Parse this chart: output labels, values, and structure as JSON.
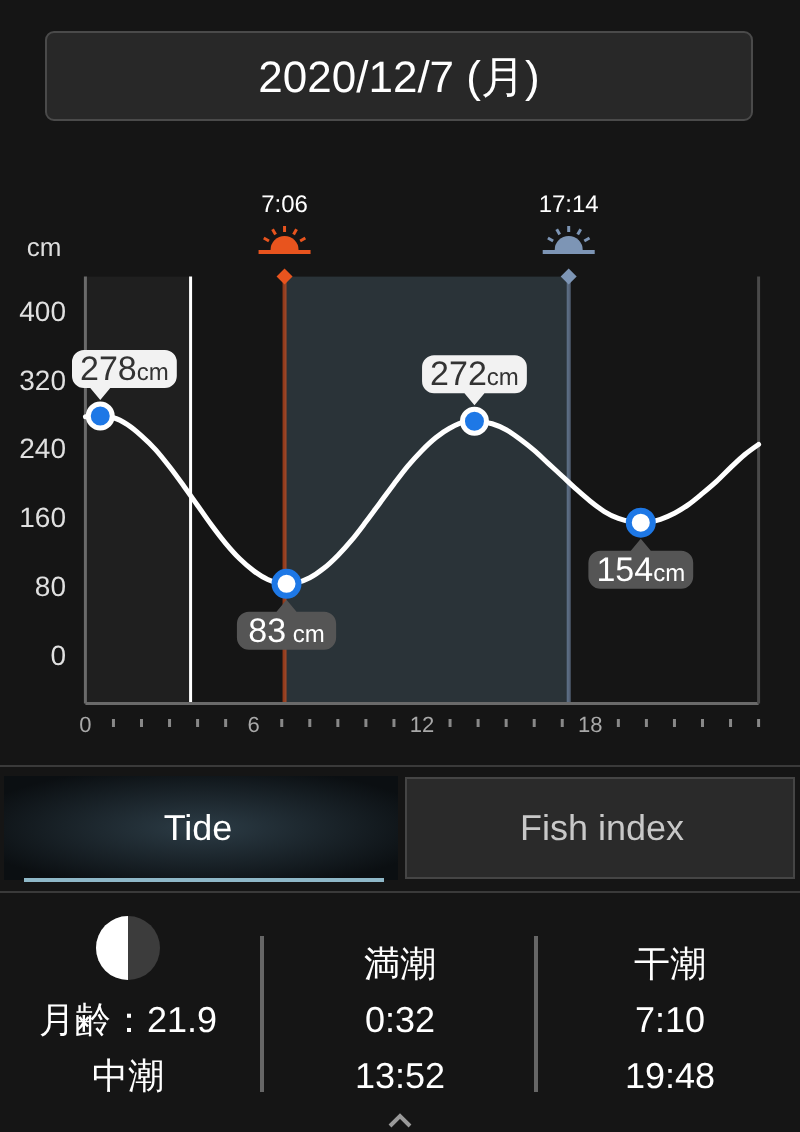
{
  "chart_data": {
    "type": "line",
    "title": "2020/12/7 (月)",
    "ylabel": "cm",
    "xlim": [
      0,
      24
    ],
    "xticks": [
      0,
      {
        "value": 1,
        "label": null
      },
      {
        "value": 2,
        "label": null
      },
      {
        "value": 3,
        "label": null
      },
      {
        "value": 4,
        "label": null
      },
      {
        "value": 5,
        "label": null
      },
      6,
      {
        "value": 7,
        "label": null
      },
      {
        "value": 8,
        "label": null
      },
      {
        "value": 9,
        "label": null
      },
      {
        "value": 10,
        "label": null
      },
      {
        "value": 11,
        "label": null
      },
      12,
      {
        "value": 13,
        "label": null
      },
      {
        "value": 14,
        "label": null
      },
      {
        "value": 15,
        "label": null
      },
      {
        "value": 16,
        "label": null
      },
      {
        "value": 17,
        "label": null
      },
      18,
      {
        "value": 19,
        "label": null
      },
      {
        "value": 20,
        "label": null
      },
      {
        "value": 21,
        "label": null
      },
      {
        "value": 22,
        "label": null
      },
      {
        "value": 23,
        "label": null
      },
      {
        "value": 24,
        "label": null
      }
    ],
    "ylim": [
      -56,
      440
    ],
    "yticks": [
      0,
      80,
      160,
      240,
      320,
      400
    ],
    "grid": false,
    "series": [
      {
        "color": "#ffffff",
        "x": [
          0,
          0.53,
          1,
          1.5,
          2,
          2.5,
          3,
          3.5,
          4,
          4.5,
          5,
          5.5,
          6,
          6.5,
          7.17,
          7.5,
          8,
          8.5,
          9,
          9.5,
          10,
          10.5,
          11,
          11.5,
          12,
          12.5,
          13,
          13.5,
          13.87,
          14.5,
          15,
          15.5,
          16,
          16.5,
          17,
          17.5,
          18,
          18.5,
          19,
          19.5,
          19.8,
          20.5,
          21,
          21.5,
          22,
          22.5,
          23,
          23.5,
          24
        ],
        "values": [
          277,
          278,
          276,
          268,
          255,
          239,
          219,
          197,
          174,
          151,
          130,
          112,
          98,
          88,
          83,
          84,
          90,
          101,
          116,
          134,
          155,
          177,
          199,
          220,
          238,
          253,
          264,
          271,
          272,
          269,
          262,
          251,
          238,
          223,
          208,
          193,
          179,
          167,
          159,
          155,
          154,
          158,
          165,
          175,
          188,
          202,
          218,
          233,
          245
        ]
      },
      {
        "type": "scatter",
        "color": "#1e78e6",
        "marker": "circle",
        "x": [
          0.53,
          7.17,
          13.87,
          19.8
        ],
        "values": [
          278,
          83,
          272,
          154
        ],
        "value_labels": [
          "278cm",
          "83 cm",
          "272cm",
          "154cm"
        ]
      }
    ],
    "bands": [
      {
        "axis": "x",
        "from": 0,
        "to": 3.75,
        "color": "#1f1f1f"
      },
      {
        "axis": "x",
        "from": 7.1,
        "to": 17.23,
        "color": "#2a3338"
      }
    ],
    "ref_lines": [
      {
        "axis": "x",
        "value": 3.75,
        "color": "#ffffff"
      },
      {
        "axis": "x",
        "value": 7.1,
        "label": "7:06",
        "color": "#e8541e"
      },
      {
        "axis": "x",
        "value": 17.23,
        "label": "17:14",
        "color": "#7d95b5"
      }
    ],
    "annotations": [
      "Tide",
      "Fish index",
      "月齢：21.9",
      "中潮",
      "満潮",
      "0:32",
      "13:52",
      "干潮",
      "7:10",
      "19:48"
    ]
  }
}
